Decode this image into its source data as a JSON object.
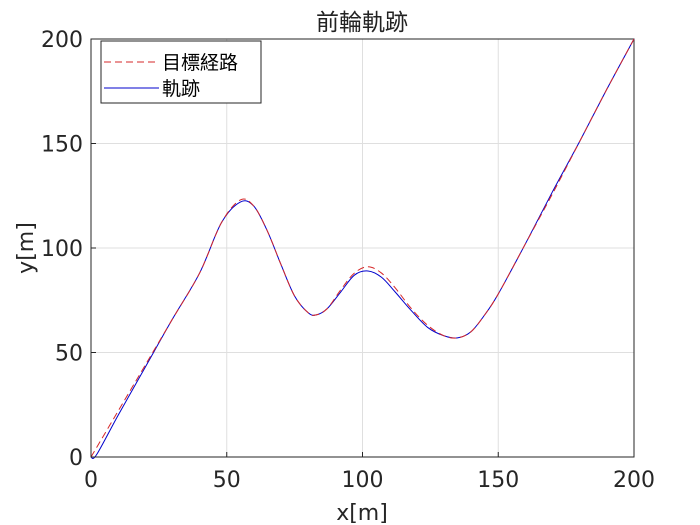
{
  "chart_data": {
    "type": "line",
    "title": "前輪軌跡",
    "xlabel": "x[m]",
    "ylabel": "y[m]",
    "xlim": [
      0,
      200
    ],
    "ylim": [
      0,
      200
    ],
    "xticks": [
      "0",
      "50",
      "100",
      "150",
      "200"
    ],
    "yticks": [
      "0",
      "50",
      "100",
      "150",
      "200"
    ],
    "grid": true,
    "legend_position": "top-left",
    "series": [
      {
        "name": "目標経路",
        "style": "dashed",
        "color": "#d62728",
        "x": [
          0,
          10,
          20,
          30,
          40,
          48,
          55,
          60,
          65,
          70,
          75,
          80,
          83,
          87,
          92,
          97,
          102,
          107,
          112,
          118,
          124,
          130,
          135,
          140,
          145,
          150,
          160,
          170,
          180,
          190,
          200
        ],
        "y": [
          0,
          22,
          44,
          66,
          88,
          112,
          123,
          120,
          108,
          92,
          77,
          69,
          68,
          71,
          80,
          88,
          91,
          88,
          81,
          71,
          63,
          58,
          57,
          60,
          68,
          78,
          102,
          126,
          151,
          176,
          200
        ]
      },
      {
        "name": "軌跡",
        "style": "solid",
        "color": "#0000cc",
        "x": [
          0,
          2,
          10,
          20,
          30,
          40,
          48,
          55,
          60,
          65,
          70,
          75,
          80,
          83,
          87,
          92,
          97,
          102,
          107,
          112,
          118,
          124,
          130,
          135,
          140,
          145,
          150,
          160,
          170,
          180,
          190,
          200
        ],
        "y": [
          0,
          1,
          20,
          43,
          66,
          88,
          112,
          122,
          120,
          108,
          92,
          77,
          69,
          68,
          71,
          79,
          87,
          89,
          86,
          79,
          70,
          62,
          58,
          57,
          60,
          68,
          78,
          102,
          127,
          151,
          176,
          200
        ]
      }
    ]
  }
}
